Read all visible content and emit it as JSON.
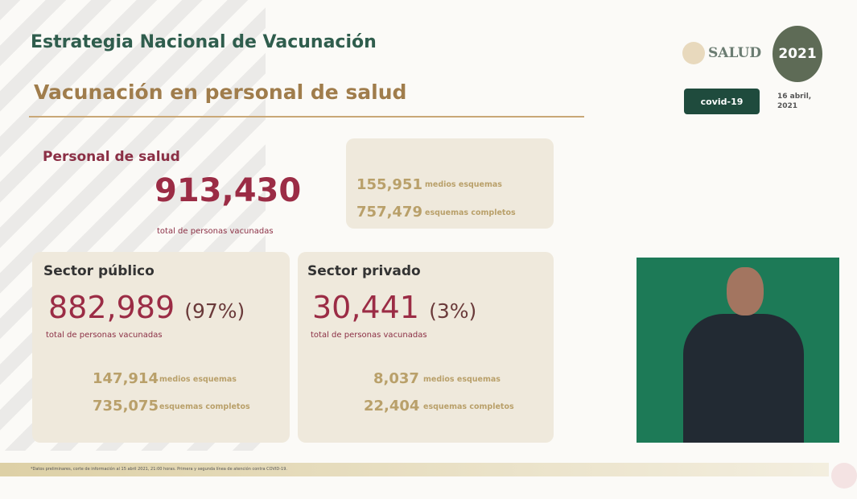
{
  "header": {
    "title": "Estrategia Nacional de Vacunación",
    "subtitle": "Vacunación en personal de salud",
    "logo_salud": "SALUD",
    "logo_2021": "2021",
    "badge": "covid-19",
    "date": "16 abril, 2021"
  },
  "personal": {
    "heading": "Personal de salud",
    "total": "913,430",
    "total_label": "total de personas vacunadas",
    "medios": "155,951",
    "medios_label": "medios esquemas",
    "completos": "757,479",
    "completos_label": "esquemas completos"
  },
  "publico": {
    "heading": "Sector público",
    "total": "882,989",
    "pct": "(97%)",
    "total_label": "total de personas vacunadas",
    "medios": "147,914",
    "medios_label": "medios esquemas",
    "completos": "735,075",
    "completos_label": "esquemas completos"
  },
  "privado": {
    "heading": "Sector privado",
    "total": "30,441",
    "pct": "(3%)",
    "total_label": "total de personas vacunadas",
    "medios": "8,037",
    "medios_label": "medios esquemas",
    "completos": "22,404",
    "completos_label": "esquemas completos"
  },
  "footer": "*Datos preliminares, corte de información al 15 abril 2021, 21:00 horas. Primera y segunda línea de atención contra COVID-19."
}
